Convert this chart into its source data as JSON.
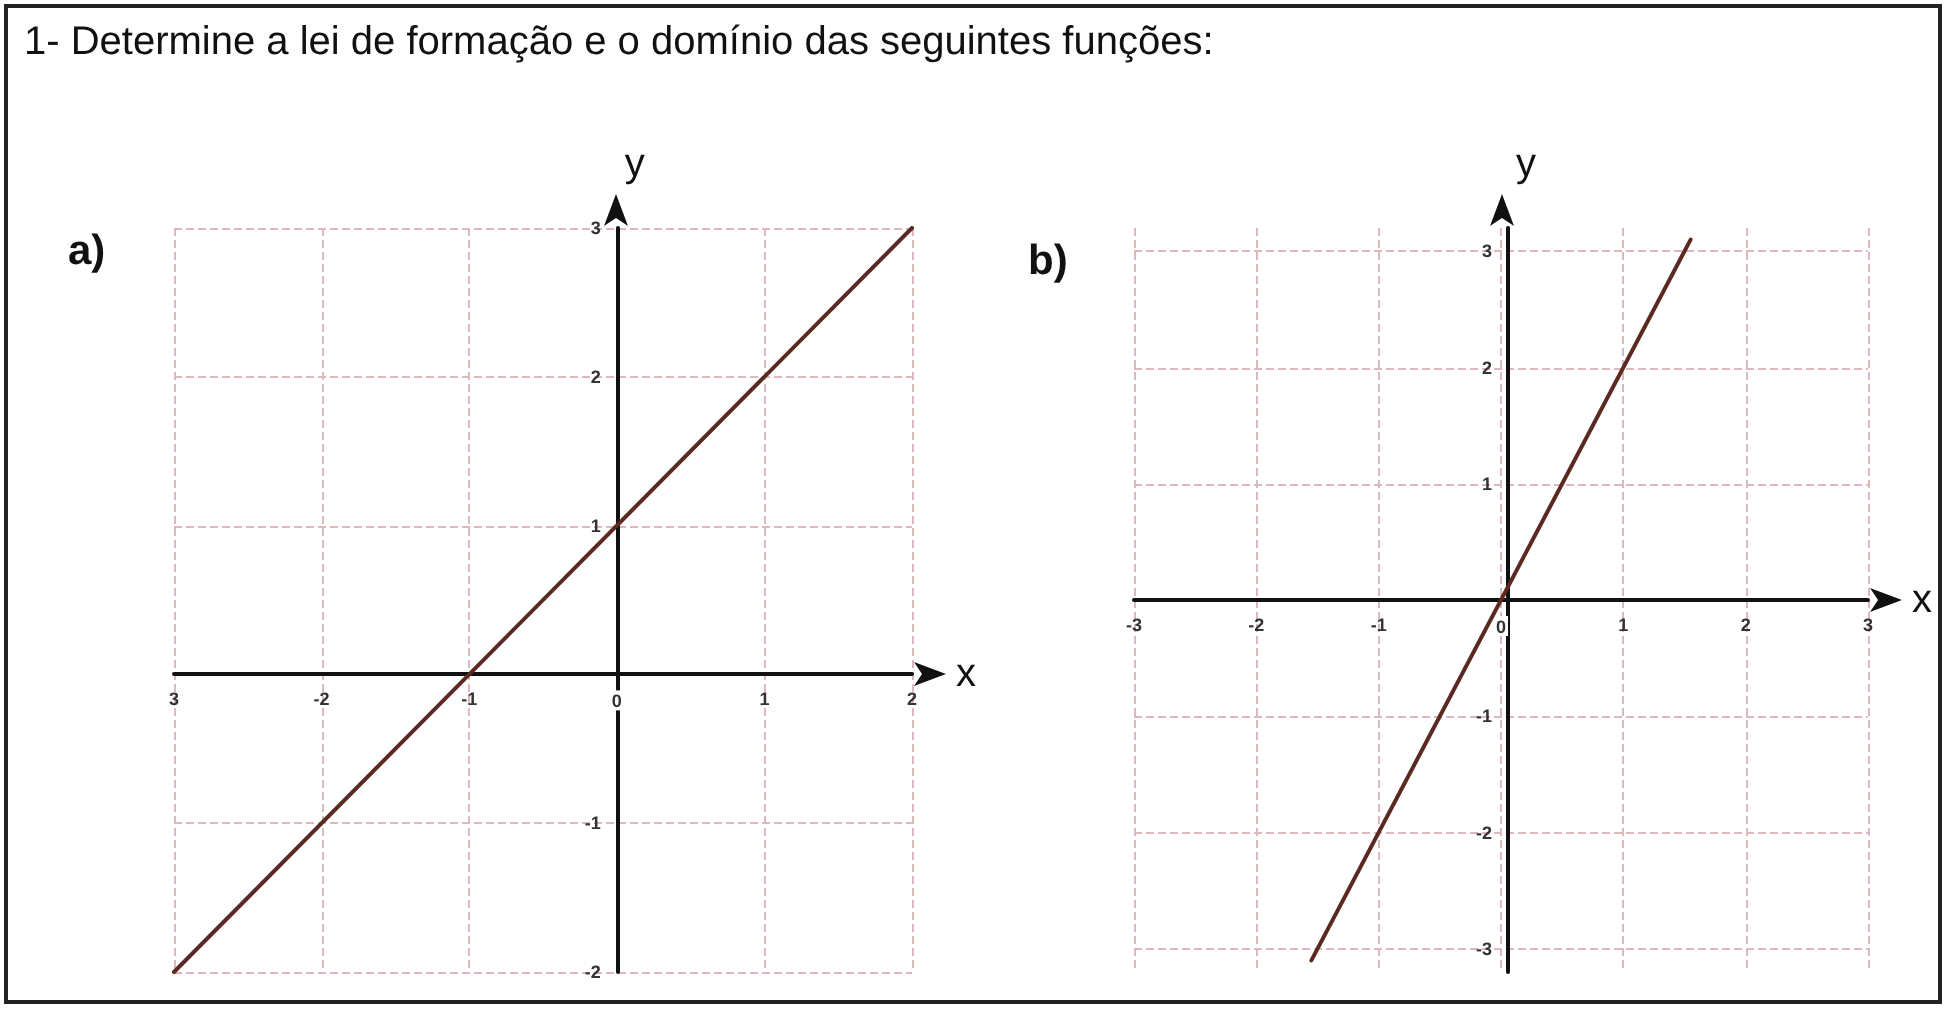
{
  "chart_data": [
    {
      "type": "line",
      "title": "1- Determine a lei de formação e o domínio das seguintes funções:",
      "annotations": [
        "a)"
      ],
      "xlabel": "x",
      "ylabel": "y",
      "series": [
        {
          "color": "#5a2a22",
          "x": [
            -3,
            2
          ],
          "values": [
            -2,
            3
          ]
        }
      ],
      "xlim": [
        -3,
        2
      ],
      "ylim": [
        -2,
        3
      ],
      "xticks": [
        {
          "value": -3,
          "label": "3"
        },
        -2,
        -1,
        0,
        1,
        2
      ],
      "yticks": [
        -2,
        -1,
        {
          "value": 0,
          "label": null
        },
        1,
        2,
        3
      ],
      "grid": true,
      "marker": "none",
      "line_style": "solid"
    },
    {
      "type": "line",
      "annotations": [
        "b)"
      ],
      "xlabel": "x",
      "ylabel": "y",
      "series": [
        {
          "color": "#5a2a22",
          "x": [
            -1.55,
            1.55
          ],
          "values": [
            -3.1,
            3.1
          ]
        }
      ],
      "xlim": [
        -3,
        3
      ],
      "ylim": [
        -3.2,
        3.2
      ],
      "xticks": [
        -3,
        -2,
        -1,
        0,
        1,
        2,
        3
      ],
      "yticks": [
        -3,
        -2,
        -1,
        {
          "value": 0,
          "label": null
        },
        1,
        2,
        3
      ],
      "grid": true,
      "marker": "none",
      "line_style": "solid"
    }
  ]
}
